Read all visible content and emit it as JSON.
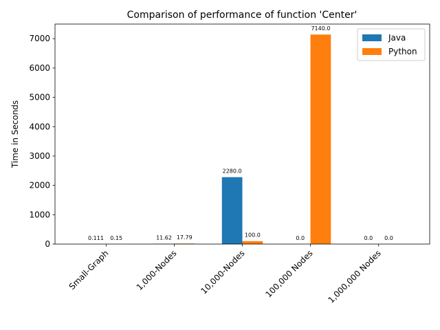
{
  "chart_data": {
    "type": "bar",
    "title": "Comparison of performance of function 'Center'",
    "xlabel": "",
    "ylabel": "Time in Seconds",
    "categories": [
      "Small-Graph",
      "1,000-Nodes",
      "10,000-Nodes",
      "100,000 Nodes",
      "1,000,000 Nodes"
    ],
    "series": [
      {
        "name": "Java",
        "values": [
          0.111,
          11.62,
          2280.0,
          0.0,
          0.0
        ],
        "labels": [
          "0.111",
          "11.62",
          "2280.0",
          "0.0",
          "0.0"
        ],
        "color": "#1f77b4"
      },
      {
        "name": "Python",
        "values": [
          0.15,
          17.79,
          100.0,
          7140.0,
          0.0
        ],
        "labels": [
          "0.15",
          "17.79",
          "100.0",
          "7140.0",
          "0.0"
        ],
        "color": "#ff7f0e"
      }
    ],
    "ylim": [
      0,
      7497
    ],
    "yticks": [
      0,
      1000,
      2000,
      3000,
      4000,
      5000,
      6000,
      7000
    ],
    "legend": "top-right",
    "grid": false
  }
}
